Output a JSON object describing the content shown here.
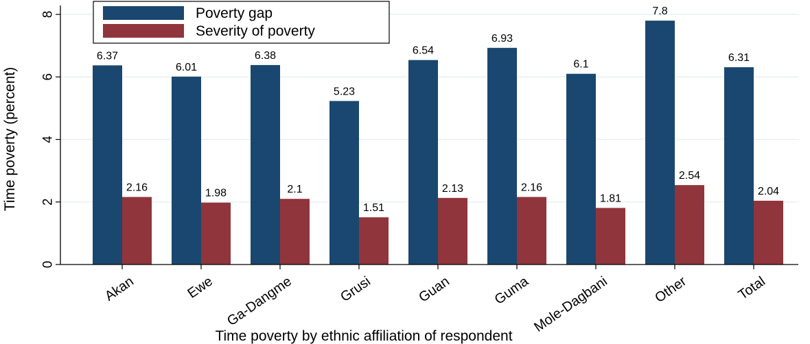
{
  "chart_data": {
    "type": "bar",
    "title": "",
    "xlabel": "Time poverty by ethnic affiliation of respondent",
    "ylabel": "Time poverty (percent)",
    "ylim": [
      0,
      8
    ],
    "yticks": [
      0,
      2,
      4,
      6,
      8
    ],
    "grid": true,
    "legend_position": "top-left",
    "categories": [
      "Akan",
      "Ewe",
      "Ga-Dangme",
      "Grusi",
      "Guan",
      "Guma",
      "Mole-Dagbani",
      "Other",
      "Total"
    ],
    "series": [
      {
        "name": "Poverty gap",
        "color": "#1a476f",
        "values": [
          6.37,
          6.01,
          6.38,
          5.23,
          6.54,
          6.93,
          6.1,
          7.8,
          6.31
        ],
        "labels": [
          "6.37",
          "6.01",
          "6.38",
          "5.23",
          "6.54",
          "6.93",
          "6.1",
          "7.8",
          "6.31"
        ]
      },
      {
        "name": "Severity of poverty",
        "color": "#90353b",
        "values": [
          2.16,
          1.98,
          2.1,
          1.51,
          2.13,
          2.16,
          1.81,
          2.54,
          2.04
        ],
        "labels": [
          "2.16",
          "1.98",
          "2.1",
          "1.51",
          "2.13",
          "2.16",
          "1.81",
          "2.54",
          "2.04"
        ]
      }
    ]
  }
}
